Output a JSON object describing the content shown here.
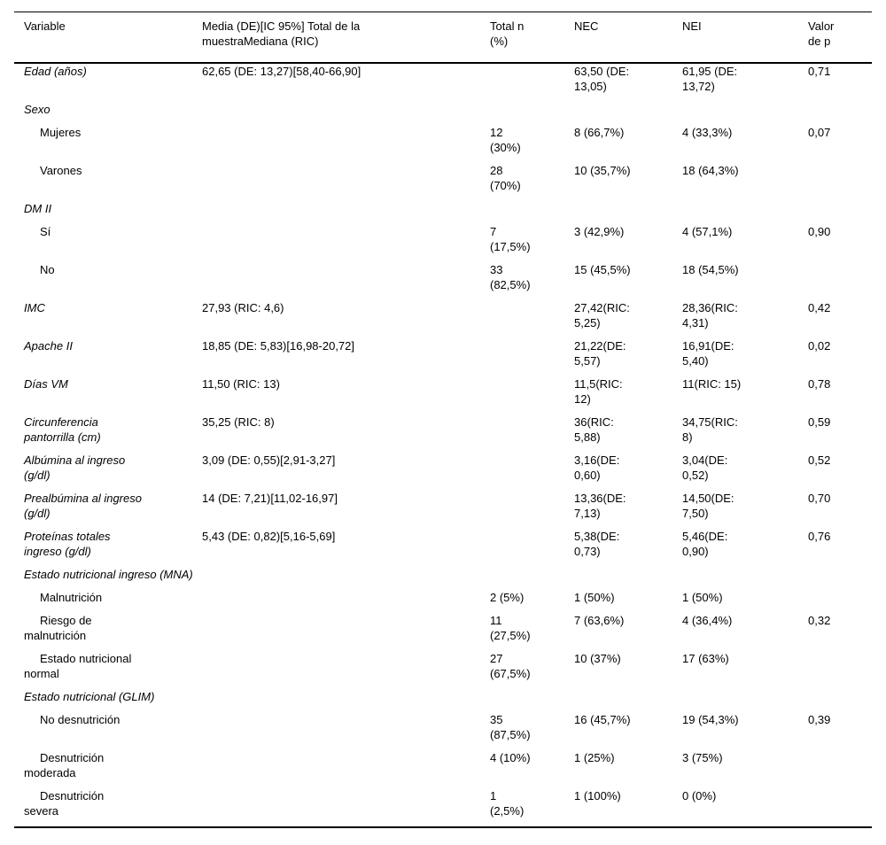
{
  "table": {
    "columns": [
      {
        "key": "variable",
        "label": "Variable"
      },
      {
        "key": "media",
        "label": "Media (DE)[IC 95%] Total de la\nmuestraMediana (RIC)"
      },
      {
        "key": "total_n",
        "label": "Total n\n(%)"
      },
      {
        "key": "nec",
        "label": "NEC"
      },
      {
        "key": "nei",
        "label": "NEI"
      },
      {
        "key": "p",
        "label": "Valor\nde p"
      }
    ],
    "rows": [
      {
        "type": "variable",
        "variable": "Edad (años)",
        "media": "62,65 (DE: 13,27)[58,40-66,90]",
        "total_n": "",
        "nec": "63,50 (DE:\n13,05)",
        "nei": "61,95 (DE:\n13,72)",
        "p": "0,71"
      },
      {
        "type": "section",
        "variable": "Sexo"
      },
      {
        "type": "sub",
        "variable": "Mujeres",
        "media": "",
        "total_n": "12\n(30%)",
        "nec": "8 (66,7%)",
        "nei": "4 (33,3%)",
        "p": "0,07"
      },
      {
        "type": "sub",
        "variable": "Varones",
        "media": "",
        "total_n": "28\n(70%)",
        "nec": "10 (35,7%)",
        "nei": "18 (64,3%)",
        "p": ""
      },
      {
        "type": "section",
        "variable": "DM II"
      },
      {
        "type": "sub",
        "variable": "Sí",
        "media": "",
        "total_n": "7\n(17,5%)",
        "nec": "3 (42,9%)",
        "nei": "4 (57,1%)",
        "p": "0,90"
      },
      {
        "type": "sub",
        "variable": "No",
        "media": "",
        "total_n": "33\n(82,5%)",
        "nec": "15 (45,5%)",
        "nei": "18 (54,5%)",
        "p": ""
      },
      {
        "type": "variable",
        "variable": "IMC",
        "media": "27,93 (RIC: 4,6)",
        "total_n": "",
        "nec": "27,42(RIC:\n5,25)",
        "nei": "28,36(RIC:\n4,31)",
        "p": "0,42"
      },
      {
        "type": "variable",
        "variable": "Apache II",
        "media": "18,85 (DE: 5,83)[16,98-20,72]",
        "total_n": "",
        "nec": "21,22(DE:\n5,57)",
        "nei": "16,91(DE:\n5,40)",
        "p": "0,02"
      },
      {
        "type": "variable",
        "variable": "Días VM",
        "media": "11,50 (RIC: 13)",
        "total_n": "",
        "nec": "11,5(RIC:\n12)",
        "nei": "11(RIC: 15)",
        "p": "0,78"
      },
      {
        "type": "variable",
        "variable": "Circunferencia\npantorrilla (cm)",
        "media": "35,25 (RIC: 8)",
        "total_n": "",
        "nec": "36(RIC:\n5,88)",
        "nei": "34,75(RIC:\n8)",
        "p": "0,59"
      },
      {
        "type": "variable",
        "variable": "Albúmina al ingreso\n(g/dl)",
        "media": "3,09 (DE: 0,55)[2,91-3,27]",
        "total_n": "",
        "nec": "3,16(DE:\n0,60)",
        "nei": "3,04(DE:\n0,52)",
        "p": "0,52"
      },
      {
        "type": "variable",
        "variable": "Prealbúmina al ingreso\n(g/dl)",
        "media": "14 (DE: 7,21)[11,02-16,97]",
        "total_n": "",
        "nec": "13,36(DE:\n7,13)",
        "nei": "14,50(DE:\n7,50)",
        "p": "0,70"
      },
      {
        "type": "variable",
        "variable": "Proteínas totales\ningreso (g/dl)",
        "media": "5,43 (DE: 0,82)[5,16-5,69]",
        "total_n": "",
        "nec": "5,38(DE:\n0,73)",
        "nei": "5,46(DE:\n0,90)",
        "p": "0,76"
      },
      {
        "type": "section",
        "variable": "Estado nutricional ingreso (MNA)"
      },
      {
        "type": "sub",
        "variable": "Malnutrición",
        "media": "",
        "total_n": "2 (5%)",
        "nec": "1 (50%)",
        "nei": "1 (50%)",
        "p": ""
      },
      {
        "type": "sub",
        "variable": "Riesgo de\nmalnutrición",
        "media": "",
        "total_n": "11\n(27,5%)",
        "nec": "7 (63,6%)",
        "nei": "4 (36,4%)",
        "p": "0,32"
      },
      {
        "type": "sub",
        "variable": "Estado nutricional\nnormal",
        "media": "",
        "total_n": "27\n(67,5%)",
        "nec": "10 (37%)",
        "nei": "17 (63%)",
        "p": ""
      },
      {
        "type": "section",
        "variable": "Estado nutricional (GLIM)"
      },
      {
        "type": "sub",
        "variable": "No desnutrición",
        "media": "",
        "total_n": "35\n(87,5%)",
        "nec": "16 (45,7%)",
        "nei": "19 (54,3%)",
        "p": "0,39"
      },
      {
        "type": "sub",
        "variable": "Desnutrición\nmoderada",
        "media": "",
        "total_n": "4 (10%)",
        "nec": "1 (25%)",
        "nei": "3 (75%)",
        "p": ""
      },
      {
        "type": "sub",
        "variable": "Desnutrición\nsevera",
        "media": "",
        "total_n": "1\n(2,5%)",
        "nec": "1 (100%)",
        "nei": "0 (0%)",
        "p": ""
      }
    ]
  }
}
